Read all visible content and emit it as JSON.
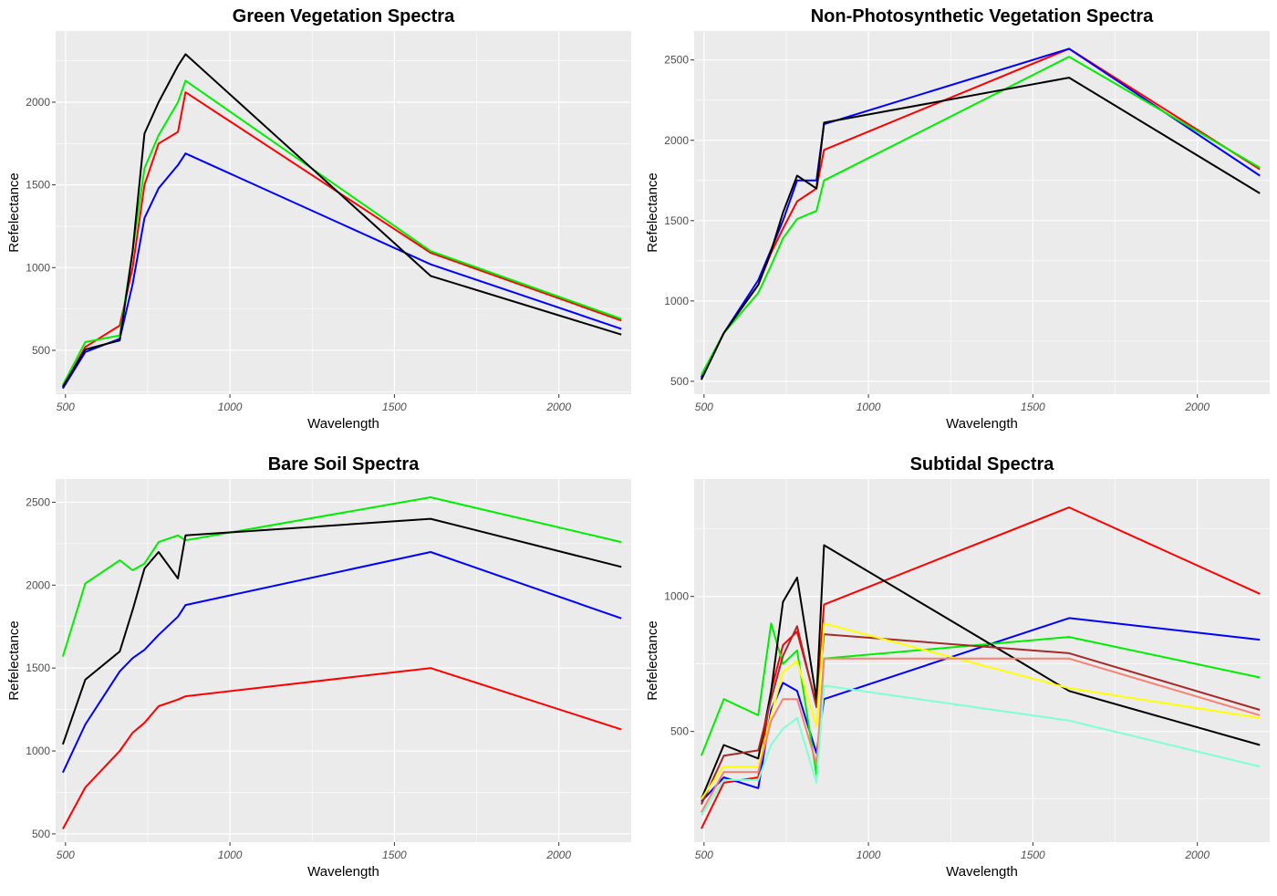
{
  "chart_data": [
    {
      "type": "line",
      "title": "Green Vegetation Spectra",
      "xlabel": "Wavelength",
      "ylabel": "Refelectance",
      "xlim": [
        470,
        2220
      ],
      "ylim": [
        235,
        2430
      ],
      "xticks": [
        500,
        1000,
        1500,
        2000
      ],
      "yticks": [
        500,
        1000,
        1500,
        2000
      ],
      "grid": true,
      "series": [
        {
          "color": "#ff0000",
          "x": [
            492,
            560,
            665,
            704,
            740,
            783,
            842,
            865,
            1610,
            2190
          ],
          "y": [
            275,
            520,
            650,
            1000,
            1500,
            1750,
            1820,
            2060,
            1090,
            680
          ]
        },
        {
          "color": "#0000ff",
          "x": [
            492,
            560,
            665,
            704,
            740,
            783,
            842,
            865,
            1610,
            2190
          ],
          "y": [
            270,
            490,
            570,
            900,
            1300,
            1480,
            1620,
            1690,
            1020,
            630
          ]
        },
        {
          "color": "#00ee00",
          "x": [
            492,
            560,
            665,
            704,
            740,
            783,
            842,
            865,
            1610,
            2190
          ],
          "y": [
            290,
            550,
            590,
            1100,
            1600,
            1800,
            2000,
            2130,
            1100,
            690
          ]
        },
        {
          "color": "#000000",
          "x": [
            492,
            560,
            665,
            704,
            740,
            783,
            842,
            865,
            1610,
            2190
          ],
          "y": [
            280,
            505,
            560,
            1100,
            1810,
            2000,
            2220,
            2290,
            950,
            595
          ]
        }
      ]
    },
    {
      "type": "line",
      "title": "Non-Photosynthetic Vegetation Spectra",
      "xlabel": "Wavelength",
      "ylabel": "Refelectance",
      "xlim": [
        470,
        2220
      ],
      "ylim": [
        420,
        2680
      ],
      "xticks": [
        500,
        1000,
        1500,
        2000
      ],
      "yticks": [
        500,
        1000,
        1500,
        2000,
        2500
      ],
      "grid": true,
      "series": [
        {
          "color": "#ff0000",
          "x": [
            492,
            560,
            665,
            704,
            740,
            783,
            842,
            865,
            1610,
            2190
          ],
          "y": [
            520,
            800,
            1100,
            1300,
            1450,
            1620,
            1700,
            1940,
            2570,
            1820
          ]
        },
        {
          "color": "#0000ff",
          "x": [
            492,
            560,
            665,
            704,
            740,
            783,
            842,
            865,
            1610,
            2190
          ],
          "y": [
            525,
            800,
            1130,
            1320,
            1500,
            1750,
            1750,
            2100,
            2570,
            1780
          ]
        },
        {
          "color": "#00ee00",
          "x": [
            492,
            560,
            665,
            704,
            740,
            783,
            842,
            865,
            1610,
            2190
          ],
          "y": [
            540,
            800,
            1050,
            1220,
            1390,
            1510,
            1560,
            1750,
            2520,
            1830
          ]
        },
        {
          "color": "#000000",
          "x": [
            492,
            560,
            665,
            704,
            740,
            783,
            842,
            865,
            1610,
            2190
          ],
          "y": [
            510,
            800,
            1100,
            1310,
            1550,
            1780,
            1700,
            2110,
            2390,
            1670
          ]
        }
      ]
    },
    {
      "type": "line",
      "title": "Bare Soil Spectra",
      "xlabel": "Wavelength",
      "ylabel": "Refelectance",
      "xlim": [
        470,
        2220
      ],
      "ylim": [
        450,
        2640
      ],
      "xticks": [
        500,
        1000,
        1500,
        2000
      ],
      "yticks": [
        500,
        1000,
        1500,
        2000,
        2500
      ],
      "grid": true,
      "series": [
        {
          "color": "#ff0000",
          "x": [
            492,
            560,
            665,
            704,
            740,
            783,
            842,
            865,
            1610,
            2190
          ],
          "y": [
            530,
            780,
            1000,
            1110,
            1170,
            1270,
            1310,
            1330,
            1500,
            1130
          ]
        },
        {
          "color": "#0000ff",
          "x": [
            492,
            560,
            665,
            704,
            740,
            783,
            842,
            865,
            1610,
            2190
          ],
          "y": [
            870,
            1160,
            1480,
            1560,
            1610,
            1700,
            1810,
            1880,
            2200,
            1800
          ]
        },
        {
          "color": "#00ee00",
          "x": [
            492,
            560,
            665,
            704,
            740,
            783,
            842,
            865,
            1610,
            2190
          ],
          "y": [
            1570,
            2010,
            2150,
            2090,
            2130,
            2260,
            2300,
            2270,
            2530,
            2260
          ]
        },
        {
          "color": "#000000",
          "x": [
            492,
            560,
            665,
            704,
            740,
            783,
            842,
            865,
            1610,
            2190
          ],
          "y": [
            1040,
            1430,
            1600,
            1850,
            2100,
            2200,
            2040,
            2300,
            2400,
            2110
          ]
        }
      ]
    },
    {
      "type": "line",
      "title": "Subtidal Spectra",
      "xlabel": "Wavelength",
      "ylabel": "Refelectance",
      "xlim": [
        470,
        2220
      ],
      "ylim": [
        90,
        1435
      ],
      "xticks": [
        500,
        1000,
        1500,
        2000
      ],
      "yticks": [
        500,
        1000
      ],
      "grid": true,
      "series": [
        {
          "color": "#ff0000",
          "x": [
            492,
            560,
            665,
            704,
            740,
            783,
            842,
            865,
            1610,
            2190
          ],
          "y": [
            140,
            310,
            330,
            650,
            820,
            870,
            600,
            970,
            1330,
            1010
          ]
        },
        {
          "color": "#0000ff",
          "x": [
            492,
            560,
            665,
            704,
            740,
            783,
            842,
            865,
            1610,
            2190
          ],
          "y": [
            240,
            330,
            290,
            580,
            680,
            650,
            420,
            620,
            920,
            840
          ]
        },
        {
          "color": "#00ee00",
          "x": [
            492,
            560,
            665,
            704,
            740,
            783,
            842,
            865,
            1610,
            2190
          ],
          "y": [
            410,
            620,
            560,
            900,
            750,
            800,
            340,
            770,
            850,
            700
          ]
        },
        {
          "color": "#000000",
          "x": [
            492,
            560,
            665,
            704,
            740,
            783,
            842,
            865,
            1610,
            2190
          ],
          "y": [
            250,
            450,
            400,
            650,
            980,
            1070,
            620,
            1190,
            650,
            450
          ]
        },
        {
          "color": "#a52a2a",
          "x": [
            492,
            560,
            665,
            704,
            740,
            783,
            842,
            865,
            1610,
            2190
          ],
          "y": [
            230,
            410,
            430,
            620,
            780,
            890,
            590,
            860,
            790,
            580
          ]
        },
        {
          "color": "#ffff00",
          "x": [
            492,
            560,
            665,
            704,
            740,
            783,
            842,
            865,
            1610,
            2190
          ],
          "y": [
            250,
            370,
            370,
            560,
            720,
            760,
            520,
            900,
            660,
            550
          ]
        },
        {
          "color": "#fa8072",
          "x": [
            492,
            560,
            665,
            704,
            740,
            783,
            842,
            865,
            1610,
            2190
          ],
          "y": [
            200,
            350,
            350,
            540,
            620,
            620,
            380,
            770,
            770,
            560
          ]
        },
        {
          "color": "#7fffd4",
          "x": [
            492,
            560,
            665,
            704,
            740,
            783,
            842,
            865,
            1610,
            2190
          ],
          "y": [
            190,
            320,
            320,
            450,
            510,
            550,
            310,
            670,
            540,
            370
          ]
        }
      ]
    }
  ]
}
